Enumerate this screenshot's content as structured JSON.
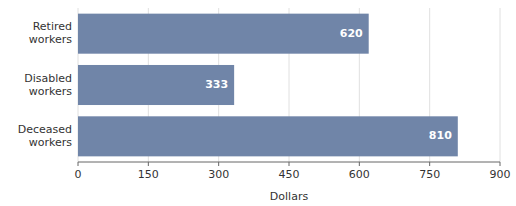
{
  "chart_data": {
    "type": "bar",
    "orientation": "horizontal",
    "categories": [
      "Deceased\nworkers",
      "Disabled\nworkers",
      "Retired\nworkers"
    ],
    "values": [
      810,
      333,
      620
    ],
    "color": "#7085a8",
    "xlabel": "Dollars",
    "xlim": [
      0,
      900
    ],
    "xticks": [
      0,
      150,
      300,
      450,
      600,
      750,
      900
    ],
    "grid": true,
    "data_labels": true
  }
}
